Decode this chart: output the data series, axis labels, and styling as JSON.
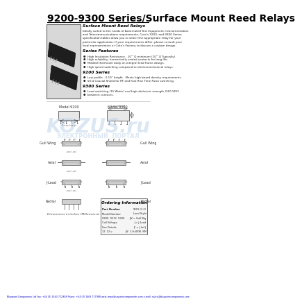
{
  "title": "9200-9300 Series/Surface Mount Reed Relays",
  "title_fontsize": 10,
  "bg_color": "#ffffff",
  "title_color": "#000000",
  "footer_text": "Bluepoint Components Ltd Fax: +44 (0) 1663 712958 Phone: +44 (0) 1663 717988 web: www.bluepointcomponents.com e-mail: sales@bluepointcomponents.com",
  "footer_color": "#0000cc",
  "watermark_text": "KOZUS.ru",
  "watermark_subtext": "ЭЛЕКТРОННЫЙ  ПОРТАЛ",
  "section1_title": "Surface Mount Reed Relays",
  "section1_body": [
    "Ideally suited to the needs of Automated Test Equipment, Instrumentation",
    "and Telecommunications requirements, Coto's 9200, and 9300 Series",
    "specification tables allow you to select the appropriate relay for your",
    "particular application. If your requirements differ, please consult your",
    "local representative or Coto's Factory to discuss a custom design."
  ],
  "section2_title": "Series Features",
  "section2_items": [
    "High Insulation Resistance - 10¹³ Ω minimum (10¹⁴ Ω Typically).",
    "High reliability, hermetically sealed contacts for long life.",
    "Molded thermoset body on integral lead frame design.",
    "High speed switching compared to electromechanical relays."
  ],
  "section3_title": "9200 Series",
  "section3_items": [
    "Low profile - 0.19\" height.  Meets high board density requirements.",
    "50 Ω Coaxial Shield for RF and Fast Rise Time Pulse switching."
  ],
  "section4_title": "9300 Series",
  "section4_items": [
    "Load switching (15 Watts) and high dielectric strength (500 VDC)",
    "between contacts."
  ],
  "lead_types": [
    "Gull Wing",
    "Axial",
    "J-Lead",
    "Radial"
  ],
  "model_labels": [
    "Model 9200",
    "Model 9300"
  ],
  "dim_label": "Dimensions in Inches (Millimeters)",
  "ordering_title": "Ordering Information",
  "ordering_rows": [
    [
      "Part Number",
      "9201-(1-2)"
    ],
    [
      "Model Number",
      "Lead Style"
    ],
    [
      "9200  9112  9300",
      "JW = Gull Wg"
    ],
    [
      "Coil Voltage",
      "J = J-Lead"
    ],
    [
      "See Details",
      "JF = J-Lef J"
    ],
    [
      "12  12 v.",
      "JW  1-FullGW  KM"
    ]
  ]
}
